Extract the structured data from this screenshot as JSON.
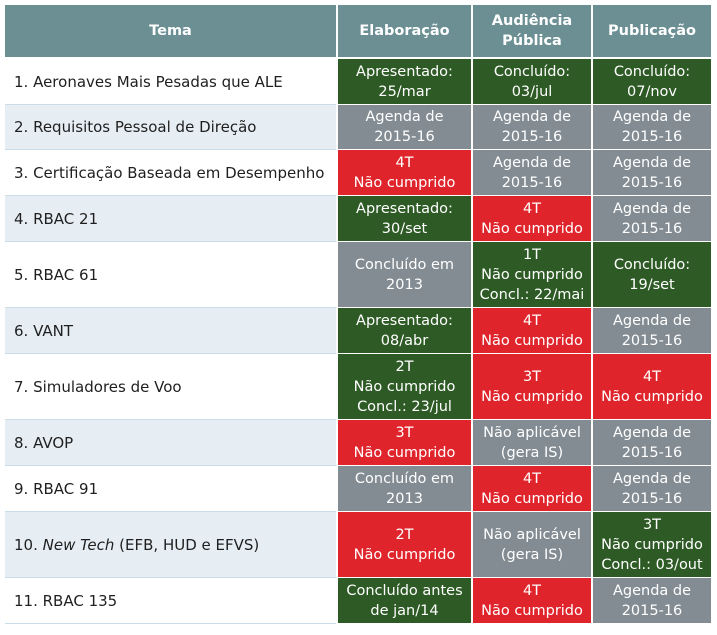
{
  "headers": {
    "tema": "Tema",
    "elaboracao": "Elaboração",
    "audiencia_1": "Audiência",
    "audiencia_2": "Pública",
    "publicacao": "Publicação"
  },
  "colors": {
    "header": "#6b8f93",
    "green": "#2e5b25",
    "gray": "#838c93",
    "red": "#e0242b"
  },
  "rows": [
    {
      "tema": "1. Aeronaves Mais Pesadas que ALE",
      "elaboracao": {
        "status": "green",
        "lines": [
          "Apresentado:",
          "25/mar"
        ]
      },
      "audiencia": {
        "status": "green",
        "lines": [
          "Concluído:",
          "03/jul"
        ]
      },
      "publicacao": {
        "status": "green",
        "lines": [
          "Concluído:",
          "07/nov"
        ]
      }
    },
    {
      "tema": "2. Requisitos Pessoal de Direção",
      "elaboracao": {
        "status": "gray",
        "lines": [
          "Agenda de",
          "2015-16"
        ]
      },
      "audiencia": {
        "status": "gray",
        "lines": [
          "Agenda de",
          "2015-16"
        ]
      },
      "publicacao": {
        "status": "gray",
        "lines": [
          "Agenda de",
          "2015-16"
        ]
      }
    },
    {
      "tema": "3. Certificação Baseada em Desempenho",
      "elaboracao": {
        "status": "red",
        "lines": [
          "4T",
          "Não cumprido"
        ]
      },
      "audiencia": {
        "status": "gray",
        "lines": [
          "Agenda de",
          "2015-16"
        ]
      },
      "publicacao": {
        "status": "gray",
        "lines": [
          "Agenda de",
          "2015-16"
        ]
      }
    },
    {
      "tema": "4. RBAC 21",
      "elaboracao": {
        "status": "green",
        "lines": [
          "Apresentado:",
          "30/set"
        ]
      },
      "audiencia": {
        "status": "red",
        "lines": [
          "4T",
          "Não cumprido"
        ]
      },
      "publicacao": {
        "status": "gray",
        "lines": [
          "Agenda de",
          "2015-16"
        ]
      }
    },
    {
      "tema": "5. RBAC 61",
      "elaboracao": {
        "status": "gray",
        "lines": [
          "Concluído em",
          "2013"
        ]
      },
      "audiencia": {
        "status": "green",
        "lines": [
          "1T",
          "Não cumprido",
          "Concl.: 22/mai"
        ]
      },
      "publicacao": {
        "status": "green",
        "lines": [
          "Concluído:",
          "19/set"
        ]
      }
    },
    {
      "tema": "6. VANT",
      "elaboracao": {
        "status": "green",
        "lines": [
          "Apresentado:",
          "08/abr"
        ]
      },
      "audiencia": {
        "status": "red",
        "lines": [
          "4T",
          "Não cumprido"
        ]
      },
      "publicacao": {
        "status": "gray",
        "lines": [
          "Agenda de",
          "2015-16"
        ]
      }
    },
    {
      "tema": "7. Simuladores de Voo",
      "elaboracao": {
        "status": "green",
        "lines": [
          "2T",
          "Não cumprido",
          "Concl.: 23/jul"
        ]
      },
      "audiencia": {
        "status": "red",
        "lines": [
          "3T",
          "Não cumprido"
        ]
      },
      "publicacao": {
        "status": "red",
        "lines": [
          "4T",
          "Não cumprido"
        ]
      }
    },
    {
      "tema": "8. AVOP",
      "elaboracao": {
        "status": "red",
        "lines": [
          "3T",
          "Não cumprido"
        ]
      },
      "audiencia": {
        "status": "gray",
        "lines": [
          "Não aplicável",
          "(gera IS)"
        ]
      },
      "publicacao": {
        "status": "gray",
        "lines": [
          "Agenda de",
          "2015-16"
        ]
      }
    },
    {
      "tema": "9. RBAC 91",
      "elaboracao": {
        "status": "gray",
        "lines": [
          "Concluído em",
          "2013"
        ]
      },
      "audiencia": {
        "status": "red",
        "lines": [
          "4T",
          "Não cumprido"
        ]
      },
      "publicacao": {
        "status": "gray",
        "lines": [
          "Agenda de",
          "2015-16"
        ]
      }
    },
    {
      "tema_prefix": "10. ",
      "tema_italic": "New Tech",
      "tema_suffix": " (EFB, HUD e EFVS)",
      "elaboracao": {
        "status": "red",
        "lines": [
          "2T",
          "Não cumprido"
        ]
      },
      "audiencia": {
        "status": "gray",
        "lines": [
          "Não aplicável",
          "(gera IS)"
        ]
      },
      "publicacao": {
        "status": "green",
        "lines": [
          "3T",
          "Não cumprido",
          "Concl.: 03/out"
        ]
      }
    },
    {
      "tema": "11. RBAC 135",
      "elaboracao": {
        "status": "green",
        "lines": [
          "Concluído antes",
          "de jan/14"
        ]
      },
      "audiencia": {
        "status": "red",
        "lines": [
          "4T",
          "Não cumprido"
        ]
      },
      "publicacao": {
        "status": "gray",
        "lines": [
          "Agenda de",
          "2015-16"
        ]
      }
    }
  ]
}
